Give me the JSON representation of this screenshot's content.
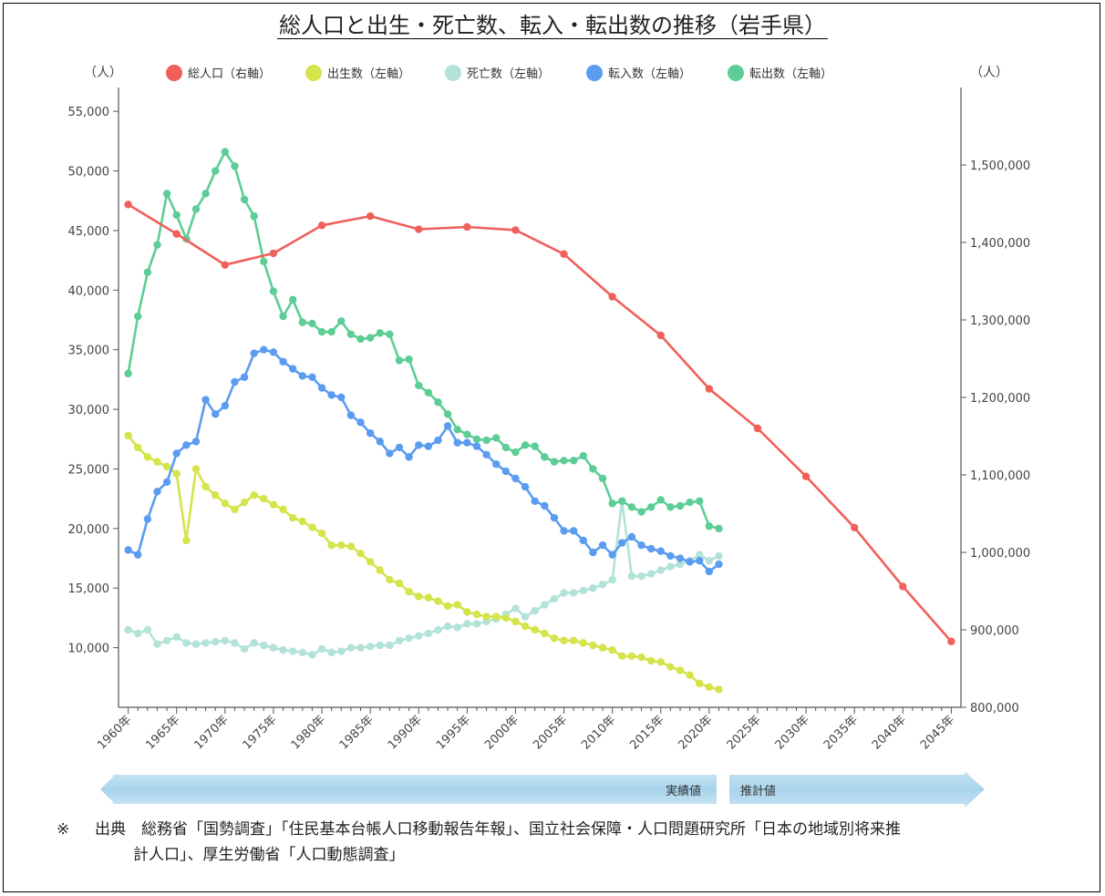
{
  "title": "総人口と出生・死亡数、転入・転出数の推移（岩手県）",
  "chart_data": {
    "type": "line",
    "title": "総人口と出生・死亡数、転入・転出数の推移（岩手県）",
    "left_unit": "（人）",
    "right_unit": "（人）",
    "left_ylim": [
      5000,
      57000
    ],
    "left_yticks": [
      10000,
      15000,
      20000,
      25000,
      30000,
      35000,
      40000,
      45000,
      50000,
      55000
    ],
    "left_ytick_labels": [
      "10,000",
      "15,000",
      "20,000",
      "25,000",
      "30,000",
      "35,000",
      "40,000",
      "45,000",
      "50,000",
      "55,000"
    ],
    "right_ylim": [
      800000,
      1600000
    ],
    "right_yticks": [
      800000,
      900000,
      1000000,
      1100000,
      1200000,
      1300000,
      1400000,
      1500000
    ],
    "right_ytick_labels": [
      "800,000",
      "900,000",
      "1,000,000",
      "1,100,000",
      "1,200,000",
      "1,300,000",
      "1,400,000",
      "1,500,000"
    ],
    "xlim": [
      1959,
      2046
    ],
    "xticks": [
      1960,
      1965,
      1970,
      1975,
      1980,
      1985,
      1990,
      1995,
      2000,
      2005,
      2010,
      2015,
      2020,
      2025,
      2030,
      2035,
      2040,
      2045
    ],
    "xtick_labels": [
      "1960年",
      "1965年",
      "1970年",
      "1975年",
      "1980年",
      "1985年",
      "1990年",
      "1995年",
      "2000年",
      "2005年",
      "2010年",
      "2015年",
      "2020年",
      "2025年",
      "2030年",
      "2035年",
      "2040年",
      "2045年"
    ],
    "grid": false,
    "legend_position": "top",
    "series": [
      {
        "name": "総人口（右軸）",
        "axis": "right",
        "color": "#f0605a",
        "x": [
          1960,
          1965,
          1970,
          1975,
          1980,
          1985,
          1990,
          1995,
          2000,
          2005,
          2010,
          2015,
          2020,
          2025,
          2030,
          2035,
          2040,
          2045
        ],
        "values": [
          1449000,
          1411000,
          1371000,
          1386000,
          1422000,
          1434000,
          1417000,
          1420000,
          1416000,
          1385000,
          1330000,
          1280000,
          1211000,
          1160000,
          1098000,
          1032000,
          956000,
          885000
        ]
      },
      {
        "name": "出生数（左軸）",
        "axis": "left",
        "color": "#d4e44a",
        "x": [
          1960,
          1961,
          1962,
          1963,
          1964,
          1965,
          1966,
          1967,
          1968,
          1969,
          1970,
          1971,
          1972,
          1973,
          1974,
          1975,
          1976,
          1977,
          1978,
          1979,
          1980,
          1981,
          1982,
          1983,
          1984,
          1985,
          1986,
          1987,
          1988,
          1989,
          1990,
          1991,
          1992,
          1993,
          1994,
          1995,
          1996,
          1997,
          1998,
          1999,
          2000,
          2001,
          2002,
          2003,
          2004,
          2005,
          2006,
          2007,
          2008,
          2009,
          2010,
          2011,
          2012,
          2013,
          2014,
          2015,
          2016,
          2017,
          2018,
          2019,
          2020,
          2021
        ],
        "values": [
          27800,
          26800,
          26000,
          25600,
          25200,
          24600,
          19000,
          25000,
          23500,
          22800,
          22100,
          21600,
          22200,
          22800,
          22500,
          22000,
          21600,
          20900,
          20600,
          20100,
          19600,
          18600,
          18600,
          18500,
          17900,
          17200,
          16500,
          15700,
          15400,
          14700,
          14300,
          14200,
          13900,
          13500,
          13600,
          13000,
          12800,
          12600,
          12600,
          12500,
          12200,
          11800,
          11500,
          11200,
          10800,
          10600,
          10600,
          10400,
          10200,
          10000,
          9800,
          9300,
          9300,
          9200,
          8900,
          8800,
          8400,
          8100,
          7700,
          7000,
          6700,
          6500
        ]
      },
      {
        "name": "死亡数（左軸）",
        "axis": "left",
        "color": "#b2e2d8",
        "x": [
          1960,
          1961,
          1962,
          1963,
          1964,
          1965,
          1966,
          1967,
          1968,
          1969,
          1970,
          1971,
          1972,
          1973,
          1974,
          1975,
          1976,
          1977,
          1978,
          1979,
          1980,
          1981,
          1982,
          1983,
          1984,
          1985,
          1986,
          1987,
          1988,
          1989,
          1990,
          1991,
          1992,
          1993,
          1994,
          1995,
          1996,
          1997,
          1998,
          1999,
          2000,
          2001,
          2002,
          2003,
          2004,
          2005,
          2006,
          2007,
          2008,
          2009,
          2010,
          2011,
          2012,
          2013,
          2014,
          2015,
          2016,
          2017,
          2018,
          2019,
          2020,
          2021
        ],
        "values": [
          11500,
          11200,
          11500,
          10300,
          10600,
          10900,
          10400,
          10300,
          10400,
          10500,
          10600,
          10400,
          9900,
          10400,
          10200,
          10000,
          9800,
          9700,
          9600,
          9400,
          9900,
          9600,
          9700,
          10000,
          10000,
          10100,
          10200,
          10200,
          10600,
          10800,
          11000,
          11200,
          11500,
          11800,
          11700,
          12000,
          12000,
          12200,
          12400,
          12800,
          13300,
          12600,
          13100,
          13600,
          14100,
          14600,
          14600,
          14800,
          15000,
          15300,
          15700,
          22300,
          16000,
          16000,
          16200,
          16500,
          16800,
          17000,
          17300,
          17800,
          17300,
          17700
        ]
      },
      {
        "name": "転入数（左軸）",
        "axis": "left",
        "color": "#5b9cf0",
        "x": [
          1960,
          1961,
          1962,
          1963,
          1964,
          1965,
          1966,
          1967,
          1968,
          1969,
          1970,
          1971,
          1972,
          1973,
          1974,
          1975,
          1976,
          1977,
          1978,
          1979,
          1980,
          1981,
          1982,
          1983,
          1984,
          1985,
          1986,
          1987,
          1988,
          1989,
          1990,
          1991,
          1992,
          1993,
          1994,
          1995,
          1996,
          1997,
          1998,
          1999,
          2000,
          2001,
          2002,
          2003,
          2004,
          2005,
          2006,
          2007,
          2008,
          2009,
          2010,
          2011,
          2012,
          2013,
          2014,
          2015,
          2016,
          2017,
          2018,
          2019,
          2020,
          2021
        ],
        "values": [
          18200,
          17800,
          20800,
          23100,
          23900,
          26300,
          27000,
          27300,
          30800,
          29600,
          30300,
          32300,
          32700,
          34700,
          35000,
          34800,
          34000,
          33400,
          32800,
          32700,
          31800,
          31200,
          31000,
          29500,
          28900,
          28000,
          27300,
          26300,
          26800,
          26000,
          27000,
          26900,
          27400,
          28600,
          27200,
          27200,
          26900,
          26200,
          25400,
          24800,
          24200,
          23500,
          22300,
          21900,
          20900,
          19800,
          19800,
          19000,
          18000,
          18600,
          17800,
          18800,
          19300,
          18600,
          18300,
          18100,
          17700,
          17500,
          17200,
          17300,
          16400,
          17000
        ]
      },
      {
        "name": "転出数（左軸）",
        "axis": "left",
        "color": "#5dcd96",
        "x": [
          1960,
          1961,
          1962,
          1963,
          1964,
          1965,
          1966,
          1967,
          1968,
          1969,
          1970,
          1971,
          1972,
          1973,
          1974,
          1975,
          1976,
          1977,
          1978,
          1979,
          1980,
          1981,
          1982,
          1983,
          1984,
          1985,
          1986,
          1987,
          1988,
          1989,
          1990,
          1991,
          1992,
          1993,
          1994,
          1995,
          1996,
          1997,
          1998,
          1999,
          2000,
          2001,
          2002,
          2003,
          2004,
          2005,
          2006,
          2007,
          2008,
          2009,
          2010,
          2011,
          2012,
          2013,
          2014,
          2015,
          2016,
          2017,
          2018,
          2019,
          2020,
          2021
        ],
        "values": [
          33000,
          37800,
          41500,
          43800,
          48100,
          46300,
          44300,
          46800,
          48100,
          50000,
          51600,
          50400,
          47600,
          46200,
          42400,
          39900,
          37800,
          39200,
          37300,
          37200,
          36500,
          36500,
          37400,
          36300,
          35900,
          36000,
          36400,
          36300,
          34100,
          34200,
          32000,
          31400,
          30600,
          29600,
          28300,
          27900,
          27500,
          27400,
          27600,
          26800,
          26400,
          27000,
          26900,
          26000,
          25600,
          25700,
          25700,
          26100,
          25000,
          24200,
          22100,
          22300,
          21800,
          21400,
          21800,
          22400,
          21800,
          21900,
          22200,
          22300,
          20200,
          20000
        ]
      }
    ]
  },
  "band": {
    "actual_label": "実績値",
    "projection_label": "推計値"
  },
  "footer": {
    "mark": "※",
    "line1": "出典　総務省「国勢調査」「住民基本台帳人口移動報告年報」、国立社会保障・人口問題研究所「日本の地域別将来推",
    "line2": "計人口」、厚生労働省「人口動態調査」"
  }
}
